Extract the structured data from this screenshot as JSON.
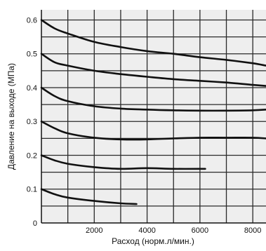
{
  "chart_data": {
    "type": "line",
    "title": "",
    "xlabel": "Расход (норм.л/мин.)",
    "ylabel": "Давление на выходе (МПа)",
    "xlim": [
      0,
      8500
    ],
    "ylim": [
      0,
      0.63
    ],
    "x_ticks": [
      2000,
      4000,
      6000,
      8000
    ],
    "x_tick_labels": [
      "2000",
      "4000",
      "6000",
      "8000"
    ],
    "y_ticks": [
      0,
      0.1,
      0.2,
      0.3,
      0.4,
      0.5,
      0.6
    ],
    "y_tick_labels": [
      "0",
      "0.1",
      "0.2",
      "0.3",
      "0.4",
      "0.5",
      "0.6"
    ],
    "grid": true,
    "colors": {
      "background": "#eeeeee",
      "grid": "#2a2a2a",
      "line": "#111111",
      "text": "#111111"
    },
    "series": [
      {
        "x": [
          0,
          500,
          1000,
          2000,
          3000,
          4000,
          5000,
          6000,
          7000,
          8000,
          8500
        ],
        "y": [
          0.6,
          0.575,
          0.56,
          0.535,
          0.52,
          0.508,
          0.5,
          0.49,
          0.482,
          0.472,
          0.465
        ]
      },
      {
        "x": [
          0,
          500,
          1000,
          2000,
          3000,
          4000,
          5000,
          6000,
          7000,
          8000,
          8500
        ],
        "y": [
          0.5,
          0.475,
          0.465,
          0.45,
          0.44,
          0.432,
          0.425,
          0.42,
          0.415,
          0.408,
          0.405
        ]
      },
      {
        "x": [
          0,
          500,
          1000,
          2000,
          3000,
          4000,
          5000,
          6000,
          7000,
          8000,
          8500
        ],
        "y": [
          0.4,
          0.375,
          0.36,
          0.345,
          0.338,
          0.335,
          0.333,
          0.332,
          0.332,
          0.333,
          0.335
        ]
      },
      {
        "x": [
          0,
          500,
          1000,
          2000,
          3000,
          4000,
          5000,
          6000,
          7000,
          8000,
          8500
        ],
        "y": [
          0.3,
          0.28,
          0.265,
          0.252,
          0.247,
          0.247,
          0.25,
          0.252,
          0.252,
          0.252,
          0.25
        ]
      },
      {
        "x": [
          0,
          500,
          1000,
          2000,
          3000,
          4000,
          5000,
          6200
        ],
        "y": [
          0.2,
          0.185,
          0.175,
          0.165,
          0.16,
          0.162,
          0.16,
          0.16
        ]
      },
      {
        "x": [
          0,
          500,
          1000,
          2000,
          3000,
          3600
        ],
        "y": [
          0.1,
          0.085,
          0.075,
          0.065,
          0.058,
          0.056
        ]
      }
    ]
  }
}
